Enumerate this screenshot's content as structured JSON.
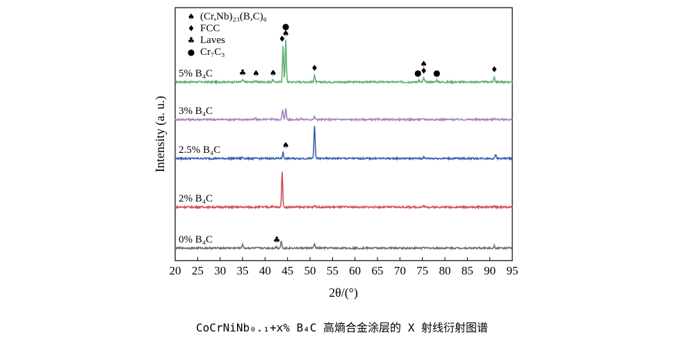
{
  "caption": "CoCrNiNb₀.₁+x% B₄C 高熵合金涂层的 X 射线衍射图谱",
  "chart_data": {
    "type": "line",
    "xlabel": "2θ/(°)",
    "ylabel": "Intensity (a. u.)",
    "xlim": [
      20,
      95
    ],
    "xticks": [
      20,
      25,
      30,
      35,
      40,
      45,
      50,
      55,
      60,
      65,
      70,
      75,
      80,
      85,
      90,
      95
    ],
    "legend_position": "top-left",
    "legend": [
      {
        "symbol": "♠",
        "label": "(Cr,Nb)₂₃(B,C)₆"
      },
      {
        "symbol": "♦",
        "label": "FCC"
      },
      {
        "symbol": "♣",
        "label": "Laves"
      },
      {
        "symbol": "●",
        "label": "Cr₇C₃"
      }
    ],
    "series": [
      {
        "name": "5% B₄C",
        "color": "#5daf73",
        "baseline": 4,
        "peaks": [
          [
            35.0,
            0.18
          ],
          [
            37.8,
            0.12
          ],
          [
            41.7,
            0.16
          ],
          [
            44.0,
            2.6
          ],
          [
            44.6,
            3.0
          ],
          [
            51.0,
            0.5
          ],
          [
            74.2,
            0.16
          ],
          [
            75.3,
            0.3
          ],
          [
            78.2,
            0.14
          ],
          [
            91.0,
            0.4
          ]
        ],
        "markers": [
          {
            "x": 35.0,
            "symbol": "♣"
          },
          {
            "x": 38.0,
            "symbol": "♠"
          },
          {
            "x": 41.8,
            "symbol": "♠"
          },
          {
            "x": 43.8,
            "symbol": "♦"
          },
          {
            "x": 44.6,
            "symbol": "♠"
          },
          {
            "x": 44.6,
            "symbol": "●"
          },
          {
            "x": 51.0,
            "symbol": "♦"
          },
          {
            "x": 74.0,
            "symbol": "●"
          },
          {
            "x": 75.3,
            "symbol": "♦"
          },
          {
            "x": 75.3,
            "symbol": "♠"
          },
          {
            "x": 78.2,
            "symbol": "●"
          },
          {
            "x": 91.0,
            "symbol": "♦"
          }
        ]
      },
      {
        "name": "3% B₄C",
        "color": "#a585c1",
        "baseline": 3,
        "peaks": [
          [
            37.8,
            0.1
          ],
          [
            41.6,
            0.1
          ],
          [
            43.9,
            0.7
          ],
          [
            44.6,
            0.85
          ],
          [
            48.0,
            0.08
          ],
          [
            51.0,
            0.22
          ],
          [
            75.3,
            0.08
          ],
          [
            91.0,
            0.12
          ]
        ],
        "markers": []
      },
      {
        "name": "2.5% B₄C",
        "color": "#3c62b0",
        "baseline": 2,
        "peaks": [
          [
            35.0,
            0.1
          ],
          [
            44.0,
            0.45
          ],
          [
            51.0,
            2.4
          ],
          [
            75.3,
            0.1
          ],
          [
            91.3,
            0.3
          ]
        ],
        "markers": [
          {
            "x": 44.6,
            "symbol": "♠"
          }
        ]
      },
      {
        "name": "2% B₄C",
        "color": "#d44b55",
        "baseline": 1,
        "peaks": [
          [
            41.5,
            0.06
          ],
          [
            43.8,
            2.5
          ],
          [
            51.0,
            0.14
          ],
          [
            75.3,
            0.1
          ],
          [
            91.0,
            0.06
          ]
        ],
        "markers": []
      },
      {
        "name": "0% B₄C",
        "color": "#6d6d6d",
        "baseline": 0,
        "peaks": [
          [
            35.0,
            0.27
          ],
          [
            42.5,
            0.1
          ],
          [
            43.6,
            0.5
          ],
          [
            51.0,
            0.3
          ],
          [
            75.3,
            0.1
          ],
          [
            91.0,
            0.18
          ]
        ],
        "markers": [
          {
            "x": 42.6,
            "symbol": "♣"
          }
        ]
      }
    ]
  }
}
